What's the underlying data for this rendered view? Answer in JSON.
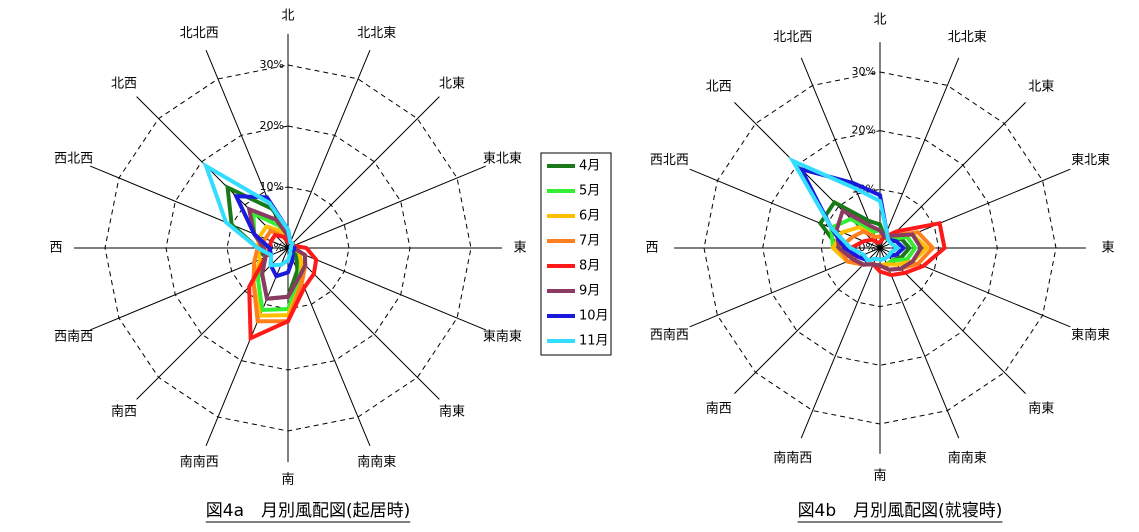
{
  "chart_data": [
    {
      "type": "radar",
      "title": "図4a　月別風配図(起居時)",
      "categories": [
        "北",
        "北北東",
        "北東",
        "東北東",
        "東",
        "東南東",
        "南東",
        "南南東",
        "南",
        "南南西",
        "南西",
        "西南西",
        "西",
        "西北西",
        "北西",
        "北北西"
      ],
      "rlim": [
        0,
        30
      ],
      "rticks": [
        {
          "value": 0,
          "label": "0%"
        },
        {
          "value": 10,
          "label": "10%"
        },
        {
          "value": 20,
          "label": "20%"
        },
        {
          "value": 30,
          "label": "30%"
        }
      ],
      "grid": true,
      "legend": "right",
      "series": [
        {
          "name": "4月",
          "color": "#1a7a1a",
          "values": [
            3,
            1,
            1,
            0.5,
            1,
            1,
            2,
            4,
            8,
            9,
            6,
            4,
            5,
            10,
            14,
            7
          ]
        },
        {
          "name": "5月",
          "color": "#33ee33",
          "values": [
            2,
            1,
            1,
            1,
            1,
            2,
            3,
            5,
            10,
            11,
            7,
            4,
            4,
            6,
            8,
            4
          ]
        },
        {
          "name": "6月",
          "color": "#ffbf00",
          "values": [
            2,
            1,
            1,
            1,
            1,
            2,
            3,
            6,
            11,
            12,
            8,
            5,
            5,
            5,
            5,
            3
          ]
        },
        {
          "name": "7月",
          "color": "#ff7f1f",
          "values": [
            2,
            1,
            1,
            1,
            1,
            3,
            4,
            6,
            12,
            13,
            8,
            6,
            5,
            4,
            4,
            2
          ]
        },
        {
          "name": "8月",
          "color": "#ff1a1a",
          "values": [
            1,
            1,
            1,
            1,
            3,
            5,
            6,
            7,
            12,
            16,
            9,
            4,
            3,
            3,
            3,
            2
          ]
        },
        {
          "name": "9月",
          "color": "#8b3a62",
          "values": [
            2,
            1,
            1,
            1,
            1,
            3,
            4,
            5,
            8,
            9,
            6,
            4,
            4,
            6,
            9,
            5
          ]
        },
        {
          "name": "10月",
          "color": "#1a1adb",
          "values": [
            3,
            1,
            1,
            0.5,
            1,
            1,
            1,
            2,
            4,
            5,
            4,
            3,
            3,
            6,
            12,
            9
          ]
        },
        {
          "name": "11月",
          "color": "#33ddff",
          "values": [
            3,
            1,
            1,
            0.5,
            0.5,
            0.5,
            0.5,
            1,
            2,
            3,
            4,
            3,
            5,
            11,
            19,
            8
          ]
        }
      ]
    },
    {
      "type": "radar",
      "title": "図4b　月別風配図(就寝時)",
      "categories": [
        "北",
        "北北東",
        "北東",
        "東北東",
        "東",
        "東南東",
        "南東",
        "南南東",
        "南",
        "南南西",
        "南西",
        "西南西",
        "西",
        "西北西",
        "北西",
        "北北西"
      ],
      "rlim": [
        0,
        30
      ],
      "rticks": [
        {
          "value": 0,
          "label": "0%"
        },
        {
          "value": 10,
          "label": "10%"
        },
        {
          "value": 20,
          "label": "20%"
        },
        {
          "value": 30,
          "label": "30%"
        }
      ],
      "grid": true,
      "legend": "none",
      "series": [
        {
          "color": "#1a7a1a",
          "values": [
            4,
            2,
            2,
            4,
            5,
            4,
            3,
            3,
            3,
            3,
            4,
            5,
            7,
            11,
            11,
            5
          ]
        },
        {
          "color": "#33ee33",
          "values": [
            3,
            2,
            2,
            5,
            6,
            5,
            3,
            3,
            3,
            3,
            4,
            6,
            8,
            9,
            7,
            3
          ]
        },
        {
          "color": "#ffbf00",
          "values": [
            2,
            2,
            3,
            6,
            8,
            6,
            4,
            3,
            3,
            3,
            4,
            6,
            8,
            7,
            5,
            2
          ]
        },
        {
          "color": "#ff7f1f",
          "values": [
            2,
            2,
            3,
            7,
            9,
            7,
            5,
            4,
            3,
            3,
            4,
            6,
            7,
            5,
            4,
            2
          ]
        },
        {
          "color": "#ff1a1a",
          "values": [
            1,
            2,
            4,
            11,
            11,
            8,
            6,
            5,
            4,
            3,
            4,
            5,
            5,
            3,
            2,
            1
          ]
        },
        {
          "color": "#8b3a62",
          "values": [
            3,
            2,
            3,
            6,
            7,
            6,
            5,
            4,
            3,
            3,
            4,
            5,
            7,
            8,
            9,
            4
          ]
        },
        {
          "color": "#1a1adb",
          "values": [
            9,
            3,
            2,
            3,
            4,
            3,
            2,
            2,
            2,
            2,
            3,
            4,
            6,
            9,
            19,
            12
          ]
        },
        {
          "color": "#33ddff",
          "values": [
            8,
            3,
            2,
            2,
            3,
            2,
            2,
            2,
            2,
            2,
            3,
            3,
            5,
            9,
            21,
            11
          ]
        }
      ]
    }
  ]
}
